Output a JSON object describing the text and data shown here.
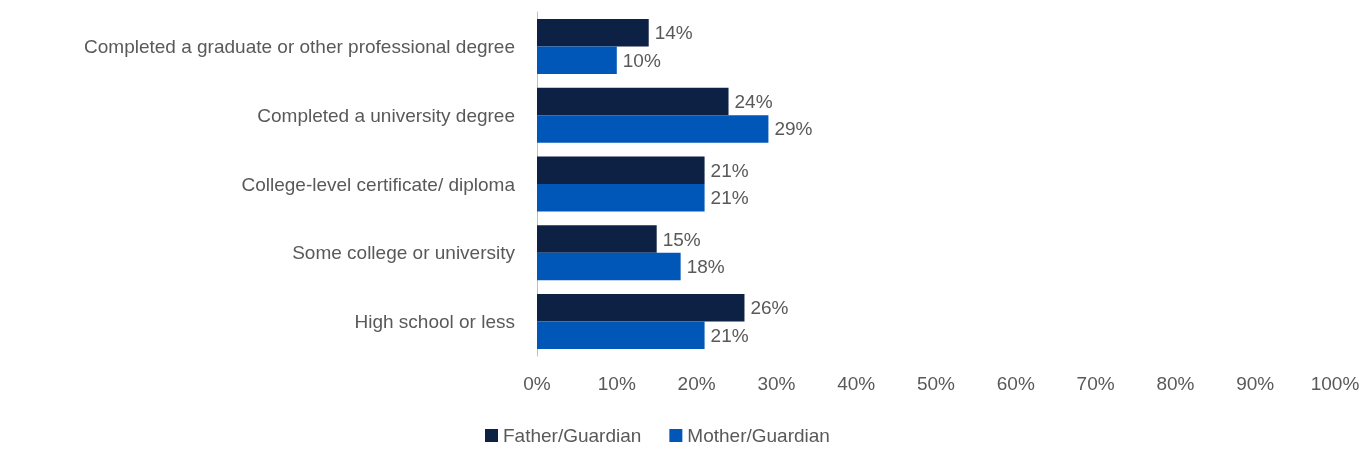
{
  "chart_data": {
    "type": "bar",
    "orientation": "horizontal",
    "categories": [
      "Completed a graduate or other professional degree",
      "Completed a university degree",
      "College-level certificate/ diploma",
      "Some college or university",
      "High school or less"
    ],
    "series": [
      {
        "name": "Father/Guardian",
        "color": "#0d2145",
        "values": [
          14,
          24,
          21,
          15,
          26
        ],
        "value_labels": [
          "14%",
          "24%",
          "21%",
          "15%",
          "26%"
        ]
      },
      {
        "name": "Mother/Guardian",
        "color": "#0057b8",
        "values": [
          10,
          29,
          21,
          18,
          21
        ],
        "value_labels": [
          "10%",
          "29%",
          "21%",
          "18%",
          "21%"
        ]
      }
    ],
    "xlim": [
      0,
      100
    ],
    "xticks": [
      {
        "value": 0,
        "label": "0%"
      },
      {
        "value": 10,
        "label": "10%"
      },
      {
        "value": 20,
        "label": "20%"
      },
      {
        "value": 30,
        "label": "30%"
      },
      {
        "value": 40,
        "label": "40%"
      },
      {
        "value": 50,
        "label": "50%"
      },
      {
        "value": 60,
        "label": "60%"
      },
      {
        "value": 70,
        "label": "70%"
      },
      {
        "value": 80,
        "label": "80%"
      },
      {
        "value": 90,
        "label": "90%"
      },
      {
        "value": 100,
        "label": "100%"
      }
    ],
    "grid": false,
    "legend": "bottom"
  }
}
